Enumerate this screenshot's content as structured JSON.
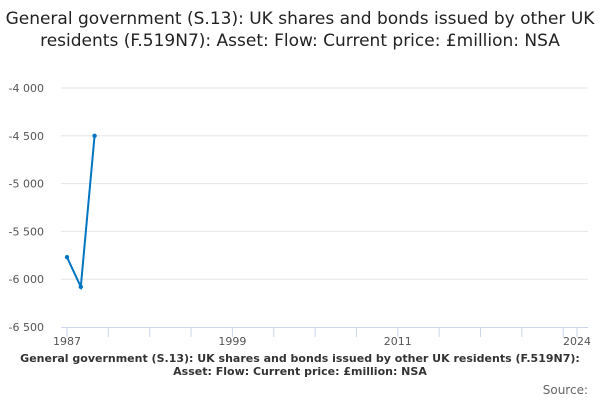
{
  "chart_data": {
    "type": "line",
    "title": "General government (S.13): UK shares and bonds issued by other UK residents (F.519N7): Asset: Flow: Current price: £million: NSA",
    "x": [
      1987,
      1988,
      1989
    ],
    "series": [
      {
        "name": "General government (S.13): UK shares and bonds issued by other UK residents (F.519N7): Asset: Flow: Current price: £million: NSA",
        "values": [
          -5770,
          -6080,
          -4500
        ]
      }
    ],
    "xlim": [
      1987,
      2024
    ],
    "ylim": [
      -6500,
      -4000
    ],
    "x_tick_labels": [
      "1987",
      "1999",
      "2011",
      "2024"
    ],
    "y_tick_labels": [
      "-4 000",
      "-4 500",
      "-5 000",
      "-5 500",
      "-6 000",
      "-6 500"
    ],
    "y_ticks": [
      -4000,
      -4500,
      -5000,
      -5500,
      -6000,
      -6500
    ],
    "grid": true,
    "legend_placement": "bottom",
    "series_color": "#0075c2",
    "source_label": "Source:"
  }
}
